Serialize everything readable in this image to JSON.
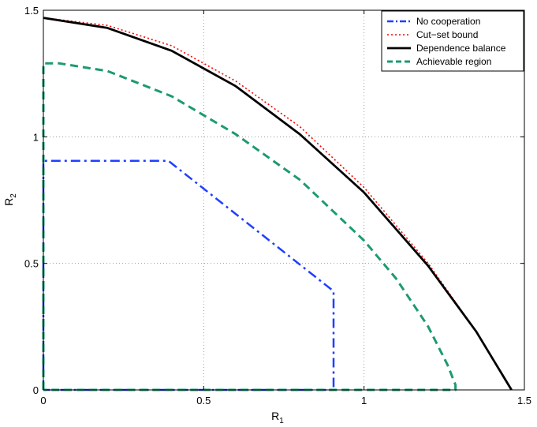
{
  "chart_data": {
    "type": "line",
    "xlabel": "R",
    "xlabel_sub": "1",
    "ylabel": "R",
    "ylabel_sub": "2",
    "xlim": [
      0,
      1.5
    ],
    "ylim": [
      0,
      1.5
    ],
    "xticks": [
      0,
      0.5,
      1,
      1.5
    ],
    "yticks": [
      0,
      0.5,
      1,
      1.5
    ],
    "xtick_labels": [
      "0",
      "0.5",
      "1",
      "1.5"
    ],
    "ytick_labels": [
      "0",
      "0.5",
      "1",
      "1.5"
    ],
    "grid": true,
    "legend_position": "top-right",
    "series": [
      {
        "name": "No cooperation",
        "color": "#1f3fff",
        "style": "dash-dot",
        "x": [
          0,
          0,
          0.39,
          0.905,
          0.905,
          0
        ],
        "y": [
          0,
          0.905,
          0.905,
          0.39,
          0,
          0
        ]
      },
      {
        "name": "Cut−set bound",
        "color": "#ff0000",
        "style": "dotted",
        "x": [
          0,
          0.2,
          0.4,
          0.6,
          0.8,
          1.0,
          1.2,
          1.35,
          1.46
        ],
        "y": [
          1.47,
          1.44,
          1.36,
          1.22,
          1.04,
          0.8,
          0.5,
          0.23,
          0
        ]
      },
      {
        "name": "Dependence balance",
        "color": "#000000",
        "style": "solid",
        "x": [
          0,
          0.2,
          0.4,
          0.6,
          0.8,
          1.0,
          1.2,
          1.35,
          1.46
        ],
        "y": [
          1.47,
          1.43,
          1.34,
          1.2,
          1.01,
          0.78,
          0.49,
          0.23,
          0
        ]
      },
      {
        "name": "Achievable region",
        "color": "#1d9a72",
        "style": "dashed",
        "x": [
          0,
          0,
          0.05,
          0.2,
          0.4,
          0.6,
          0.8,
          1.0,
          1.1,
          1.2,
          1.26,
          1.285,
          1.285,
          0
        ],
        "y": [
          0,
          1.29,
          1.29,
          1.26,
          1.16,
          1.01,
          0.83,
          0.59,
          0.44,
          0.25,
          0.1,
          0.02,
          0,
          0
        ]
      }
    ]
  }
}
